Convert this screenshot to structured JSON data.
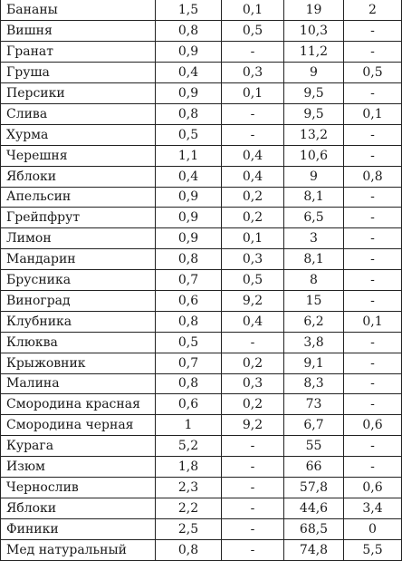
{
  "rows": [
    [
      "Бананы",
      "1,5",
      "0,1",
      "19",
      "2"
    ],
    [
      "Вишня",
      "0,8",
      "0,5",
      "10,3",
      "-"
    ],
    [
      "Гранат",
      "0,9",
      "-",
      "11,2",
      "-"
    ],
    [
      "Груша",
      "0,4",
      "0,3",
      "9",
      "0,5"
    ],
    [
      "Персики",
      "0,9",
      "0,1",
      "9,5",
      "-"
    ],
    [
      "Слива",
      "0,8",
      "-",
      "9,5",
      "0,1"
    ],
    [
      "Хурма",
      "0,5",
      "-",
      "13,2",
      "-"
    ],
    [
      "Черешня",
      "1,1",
      "0,4",
      "10,6",
      "-"
    ],
    [
      "Яблоки",
      "0,4",
      "0,4",
      "9",
      "0,8"
    ],
    [
      "Апельсин",
      "0,9",
      "0,2",
      "8,1",
      "-"
    ],
    [
      "Грейпфрут",
      "0,9",
      "0,2",
      "6,5",
      "-"
    ],
    [
      "Лимон",
      "0,9",
      "0,1",
      "3",
      "-"
    ],
    [
      "Мандарин",
      "0,8",
      "0,3",
      "8,1",
      "-"
    ],
    [
      "Брусника",
      "0,7",
      "0,5",
      "8",
      "-"
    ],
    [
      "Виноград",
      "0,6",
      "9,2",
      "15",
      "-"
    ],
    [
      "Клубника",
      "0,8",
      "0,4",
      "6,2",
      "0,1"
    ],
    [
      "Клюква",
      "0,5",
      "-",
      "3,8",
      "-"
    ],
    [
      "Крыжовник",
      "0,7",
      "0,2",
      "9,1",
      "-"
    ],
    [
      "Малина",
      "0,8",
      "0,3",
      "8,3",
      "-"
    ],
    [
      "Смородина красная",
      "0,6",
      "0,2",
      "73",
      "-"
    ],
    [
      "Смородина черная",
      "1",
      "9,2",
      "6,7",
      "0,6"
    ],
    [
      "Курага",
      "5,2",
      "-",
      "55",
      "-"
    ],
    [
      "Изюм",
      "1,8",
      "-",
      "66",
      "-"
    ],
    [
      "Чернослив",
      "2,3",
      "-",
      "57,8",
      "0,6"
    ],
    [
      "Яблоки",
      "2,2",
      "-",
      "44,6",
      "3,4"
    ],
    [
      "Финики",
      "2,5",
      "-",
      "68,5",
      "0"
    ],
    [
      "Мед натуральный",
      "0,8",
      "-",
      "74,8",
      "5,5"
    ]
  ]
}
